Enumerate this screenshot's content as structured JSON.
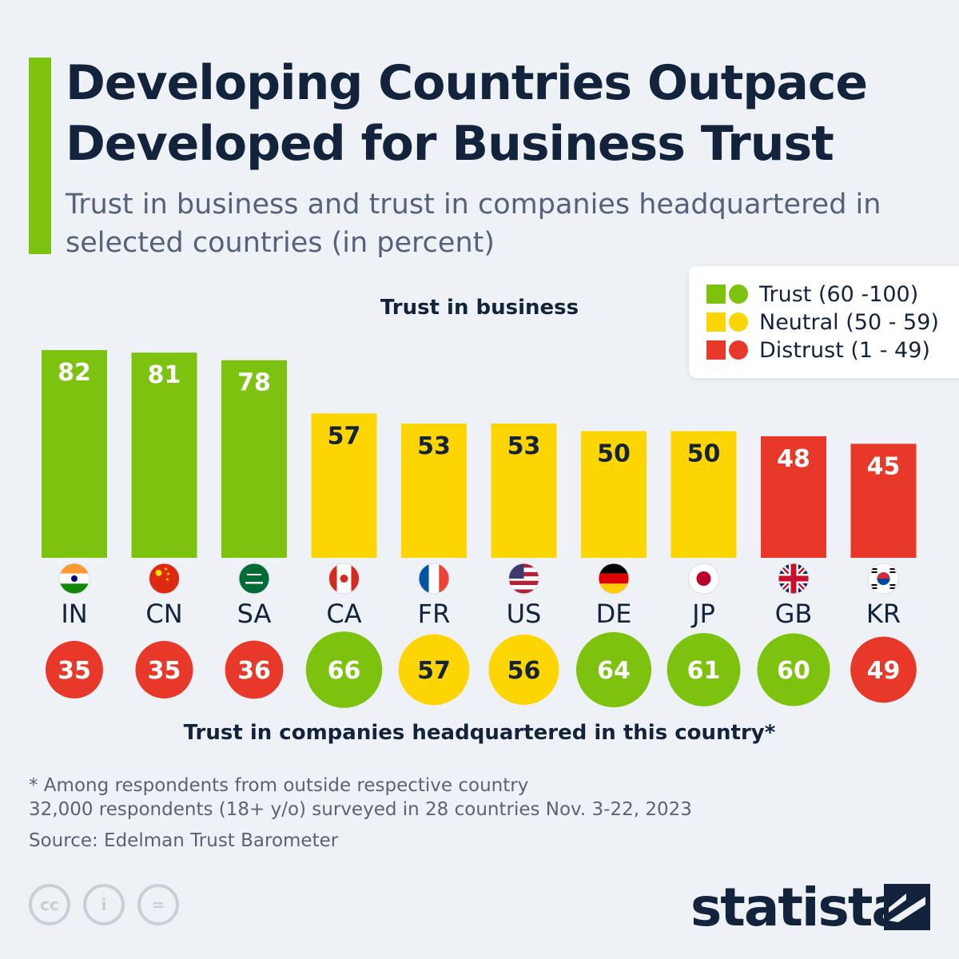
{
  "title": "Developing Countries Outpace Developed for Business Trust",
  "subtitle": "Trust in business and trust in companies headquartered in selected countries (in percent)",
  "legend": {
    "items": [
      {
        "label": "Trust (60 -100)",
        "color": "#7dc20e"
      },
      {
        "label": "Neutral (50 - 59)",
        "color": "#fdd500"
      },
      {
        "label": "Distrust (1 - 49)",
        "color": "#e8382a"
      }
    ]
  },
  "chart_data": {
    "type": "bar",
    "title": "Trust in business",
    "xlabel": "",
    "ylabel": "",
    "ylim": [
      0,
      100
    ],
    "categories": [
      "IN",
      "CN",
      "SA",
      "CA",
      "FR",
      "US",
      "DE",
      "JP",
      "GB",
      "KR"
    ],
    "series": [
      {
        "name": "Trust in business",
        "values": [
          82,
          81,
          78,
          57,
          53,
          53,
          50,
          50,
          48,
          45
        ]
      },
      {
        "name": "Trust in companies headquartered in this country*",
        "values": [
          35,
          35,
          36,
          66,
          57,
          56,
          64,
          61,
          60,
          49
        ]
      }
    ],
    "secondary_label": "Trust in companies headquartered in this country*"
  },
  "footnotes": {
    "note": "* Among respondents from outside respective country",
    "survey": "32,000 respondents (18+ y/o) surveyed in 28 countries Nov. 3-22, 2023",
    "source": "Source: Edelman Trust Barometer"
  },
  "license_icons": [
    "cc",
    "i",
    "="
  ],
  "brand": "statista",
  "colors": {
    "trust": "#7dc20e",
    "neutral": "#fdd500",
    "distrust": "#e8382a",
    "text_dark": "#14233c",
    "accent": "#7dc20e"
  }
}
